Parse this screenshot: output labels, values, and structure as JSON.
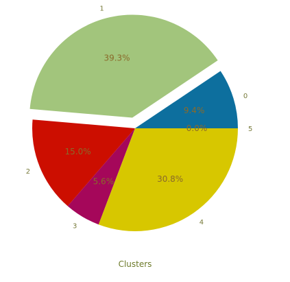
{
  "chart_data": {
    "type": "pie",
    "title": "Clusters",
    "slices": [
      {
        "label": "0",
        "percent": 9.4,
        "pct_text": "9.4%",
        "color": "#0d6f9e",
        "explode": false
      },
      {
        "label": "1",
        "percent": 39.3,
        "pct_text": "39.3%",
        "color": "#a2c57c",
        "explode": true
      },
      {
        "label": "2",
        "percent": 15.0,
        "pct_text": "15.0%",
        "color": "#cc0e00",
        "explode": false
      },
      {
        "label": "3",
        "percent": 5.6,
        "pct_text": "5.6%",
        "color": "#a5075a",
        "explode": false
      },
      {
        "label": "4",
        "percent": 30.8,
        "pct_text": "30.8%",
        "color": "#d7c700",
        "explode": false
      },
      {
        "label": "5",
        "percent": 0.0,
        "pct_text": "0.0%",
        "color": "#7a7a7a",
        "explode": false
      }
    ],
    "start_angle_deg": 0,
    "direction": "counterclockwise"
  }
}
